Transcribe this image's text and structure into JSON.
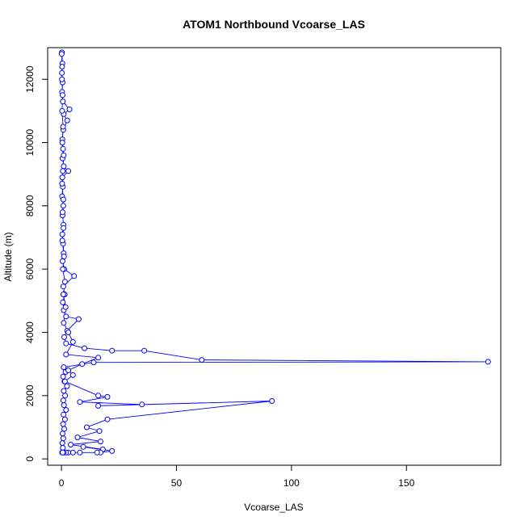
{
  "chart_data": {
    "type": "line",
    "title": "ATOM1 Northbound Vcoarse_LAS",
    "xlabel": "Vcoarse_LAS",
    "ylabel": "Altitude (m)",
    "xlim": [
      -6,
      191
    ],
    "ylim": [
      -200,
      13000
    ],
    "x_ticks": [
      0,
      50,
      100,
      150
    ],
    "y_ticks": [
      0,
      2000,
      4000,
      6000,
      8000,
      10000,
      12000
    ],
    "grid": false,
    "legend": "none",
    "series": [
      {
        "color": "#0000ff",
        "marker": "open-circle",
        "points": [
          [
            0.3,
            200
          ],
          [
            0.6,
            350
          ],
          [
            0.4,
            500
          ],
          [
            0.8,
            650
          ],
          [
            0.5,
            800
          ],
          [
            1.2,
            950
          ],
          [
            0.7,
            1100
          ],
          [
            1.5,
            1250
          ],
          [
            0.9,
            1400
          ],
          [
            2.0,
            1550
          ],
          [
            1.1,
            1700
          ],
          [
            0.8,
            1850
          ],
          [
            1.6,
            2000
          ],
          [
            1.0,
            2150
          ],
          [
            2.4,
            2300
          ],
          [
            1.3,
            2450
          ],
          [
            0.7,
            2600
          ],
          [
            1.8,
            2750
          ],
          [
            1.0,
            2900
          ],
          [
            14.0,
            3050
          ],
          [
            185.5,
            3070
          ],
          [
            61.0,
            3130
          ],
          [
            36.0,
            3420
          ],
          [
            22.0,
            3420
          ],
          [
            10.0,
            3500
          ],
          [
            2.0,
            3650
          ],
          [
            1.2,
            3850
          ],
          [
            2.5,
            4050
          ],
          [
            7.5,
            4420
          ],
          [
            2.0,
            4500
          ],
          [
            1.0,
            4700
          ],
          [
            0.6,
            4950
          ],
          [
            1.4,
            5200
          ],
          [
            0.8,
            5450
          ],
          [
            5.5,
            5780
          ],
          [
            1.2,
            6000
          ],
          [
            0.5,
            6250
          ],
          [
            1.0,
            6500
          ],
          [
            0.7,
            6800
          ],
          [
            0.4,
            7100
          ],
          [
            0.9,
            7400
          ],
          [
            0.5,
            7700
          ],
          [
            0.8,
            8000
          ],
          [
            0.3,
            8300
          ],
          [
            0.6,
            8600
          ],
          [
            0.4,
            8900
          ],
          [
            3.0,
            9100
          ],
          [
            1.0,
            9250
          ],
          [
            0.5,
            9500
          ],
          [
            0.7,
            9800
          ],
          [
            0.4,
            10100
          ],
          [
            0.8,
            10400
          ],
          [
            2.5,
            10700
          ],
          [
            1.0,
            10900
          ],
          [
            3.5,
            11050
          ],
          [
            0.6,
            11300
          ],
          [
            0.3,
            11600
          ],
          [
            0.5,
            11900
          ],
          [
            0.2,
            12200
          ],
          [
            0.4,
            12500
          ],
          [
            0.2,
            12850
          ],
          [
            0.1,
            12800
          ],
          [
            0.3,
            12400
          ],
          [
            0.2,
            12000
          ],
          [
            0.5,
            11500
          ],
          [
            0.3,
            11000
          ],
          [
            0.7,
            10500
          ],
          [
            0.4,
            10000
          ],
          [
            1.0,
            9600
          ],
          [
            0.6,
            9100
          ],
          [
            0.3,
            8700
          ],
          [
            0.8,
            8200
          ],
          [
            0.5,
            7800
          ],
          [
            0.9,
            7300
          ],
          [
            0.4,
            6900
          ],
          [
            1.1,
            6400
          ],
          [
            0.6,
            6000
          ],
          [
            1.5,
            5600
          ],
          [
            0.8,
            5200
          ],
          [
            1.8,
            4800
          ],
          [
            1.0,
            4300
          ],
          [
            3.0,
            4000
          ],
          [
            5.0,
            3700
          ],
          [
            2.0,
            3300
          ],
          [
            16.0,
            3200
          ],
          [
            9.0,
            3000
          ],
          [
            3.0,
            2800
          ],
          [
            5.0,
            2650
          ],
          [
            1.5,
            2450
          ],
          [
            16.0,
            2000
          ],
          [
            20.0,
            1960
          ],
          [
            8.0,
            1800
          ],
          [
            35.0,
            1720
          ],
          [
            16.0,
            1680
          ],
          [
            91.5,
            1830
          ],
          [
            20.0,
            1250
          ],
          [
            11.0,
            1000
          ],
          [
            16.5,
            880
          ],
          [
            7.0,
            680
          ],
          [
            17.0,
            550
          ],
          [
            4.0,
            450
          ],
          [
            18.0,
            300
          ],
          [
            9.5,
            380
          ],
          [
            22.0,
            250
          ],
          [
            17.0,
            200
          ],
          [
            15.5,
            200
          ],
          [
            8.0,
            200
          ],
          [
            5.0,
            200
          ],
          [
            3.0,
            200
          ],
          [
            2.0,
            200
          ],
          [
            1.0,
            200
          ],
          [
            0.5,
            200
          ]
        ]
      }
    ]
  }
}
